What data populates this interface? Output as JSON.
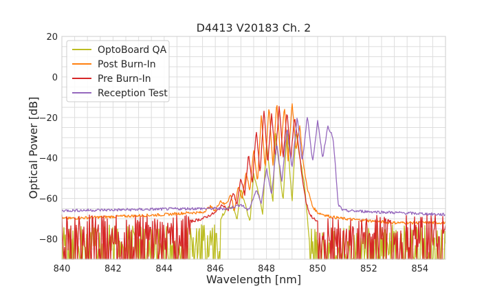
{
  "chart_data": {
    "type": "line",
    "title": "D4413 V20183 Ch. 2",
    "xlabel": "Wavelength [nm]",
    "ylabel": "Optical Power [dB]",
    "xlim": [
      840,
      855
    ],
    "ylim": [
      -90,
      20
    ],
    "xticks": [
      840,
      842,
      844,
      846,
      848,
      850,
      852,
      854
    ],
    "yticks": [
      20,
      0,
      -20,
      -40,
      -60,
      -80
    ],
    "xtick_labels": [
      "840",
      "842",
      "844",
      "846",
      "848",
      "850",
      "852",
      "854"
    ],
    "ytick_labels": [
      "20",
      "0",
      "−20",
      "−40",
      "−60",
      "−80"
    ],
    "grid": true,
    "legend_position": "top-left",
    "series": [
      {
        "name": "OptoBoard QA",
        "color": "#bcbd22",
        "noisy_ranges": [
          [
            840,
            846.2
          ],
          [
            849.7,
            855
          ]
        ],
        "noise_top": -73,
        "x": [
          840,
          844.5,
          845.5,
          846.2,
          846.5,
          846.7,
          846.85,
          847.0,
          847.2,
          847.35,
          847.5,
          847.7,
          847.85,
          848.0,
          848.1,
          848.25,
          848.35,
          848.5,
          848.65,
          848.8,
          848.9,
          849.0,
          849.15,
          849.3,
          849.45,
          849.55,
          849.7,
          855
        ],
        "y": [
          -85,
          -80,
          -75,
          -70,
          -64,
          -65,
          -70,
          -56,
          -64,
          -72,
          -48,
          -58,
          -68,
          -32,
          -44,
          -62,
          -27,
          -44,
          -62,
          -26,
          -44,
          -62,
          -27,
          -40,
          -50,
          -62,
          -85,
          -85
        ]
      },
      {
        "name": "Post Burn-In",
        "color": "#ff7f0e",
        "x": [
          840,
          842,
          844,
          845,
          845.5,
          845.8,
          846.0,
          846.2,
          846.35,
          846.5,
          846.6,
          846.75,
          846.9,
          847.05,
          847.2,
          847.35,
          847.5,
          847.65,
          847.8,
          847.95,
          848.1,
          848.25,
          848.4,
          848.55,
          848.7,
          848.85,
          849.0,
          849.15,
          849.3,
          849.45,
          849.6,
          849.8,
          850.0,
          850.5,
          851,
          853,
          855
        ],
        "y": [
          -70,
          -69,
          -68,
          -67,
          -67,
          -64,
          -66,
          -61,
          -63,
          -61,
          -58,
          -66,
          -54,
          -60,
          -47,
          -56,
          -36,
          -52,
          -18,
          -46,
          -14,
          -44,
          -12,
          -40,
          -14,
          -42,
          -12,
          -36,
          -24,
          -44,
          -55,
          -64,
          -67,
          -69,
          -70,
          -72,
          -72
        ]
      },
      {
        "name": "Pre Burn-In",
        "color": "#d62728",
        "noisy_ranges": [
          [
            840,
            845.0
          ],
          [
            850.0,
            855
          ]
        ],
        "noise_top": -68,
        "x": [
          840,
          844.5,
          845.5,
          846.0,
          846.3,
          846.5,
          846.7,
          846.85,
          847.0,
          847.15,
          847.3,
          847.45,
          847.6,
          847.75,
          847.9,
          848.05,
          848.2,
          848.35,
          848.5,
          848.65,
          848.8,
          848.95,
          849.1,
          849.25,
          849.4,
          849.55,
          849.7,
          850.0,
          855
        ],
        "y": [
          -80,
          -73,
          -70,
          -67,
          -63,
          -66,
          -57,
          -63,
          -50,
          -58,
          -38,
          -53,
          -26,
          -48,
          -16,
          -43,
          -18,
          -40,
          -14,
          -40,
          -17,
          -40,
          -20,
          -34,
          -50,
          -62,
          -68,
          -72,
          -80
        ]
      },
      {
        "name": "Reception Test",
        "color": "#9467bd",
        "x": [
          840,
          843,
          845,
          846,
          846.5,
          847.0,
          847.3,
          847.6,
          847.8,
          848.0,
          848.2,
          848.4,
          848.6,
          848.8,
          849.0,
          849.2,
          849.4,
          849.6,
          849.8,
          850.0,
          850.2,
          850.4,
          850.6,
          850.7,
          850.8,
          851.0,
          852,
          853,
          854,
          855
        ],
        "y": [
          -66,
          -65.5,
          -65,
          -65,
          -65,
          -63,
          -66,
          -56,
          -62,
          -45,
          -58,
          -33,
          -52,
          -25,
          -45,
          -20,
          -42,
          -19,
          -42,
          -22,
          -40,
          -24,
          -30,
          -45,
          -63,
          -66,
          -66.5,
          -67,
          -67.5,
          -68
        ]
      }
    ]
  }
}
